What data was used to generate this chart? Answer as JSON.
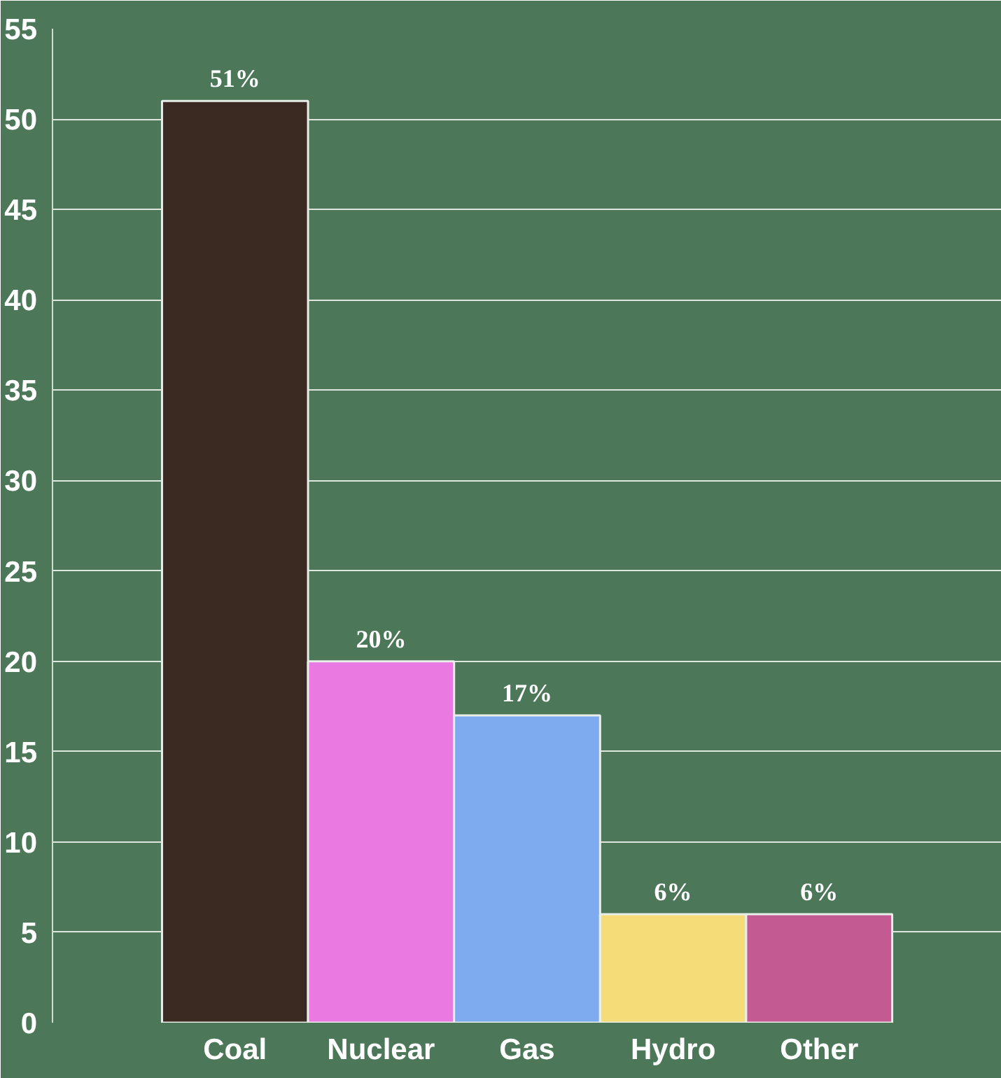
{
  "chart_data": {
    "type": "bar",
    "categories": [
      "Coal",
      "Nuclear",
      "Gas",
      "Hydro",
      "Other"
    ],
    "values": [
      51,
      20,
      17,
      6,
      6
    ],
    "colors": [
      "#3b2a22",
      "#ea7ae2",
      "#7eaaf0",
      "#f6dc78",
      "#c45a92"
    ],
    "value_labels": [
      "51%",
      "20%",
      "17%",
      "6%",
      "6%"
    ],
    "ylim": [
      0,
      55
    ],
    "yticks": [
      0,
      5,
      10,
      15,
      20,
      25,
      30,
      35,
      40,
      45,
      50,
      55
    ],
    "grid": "y"
  }
}
